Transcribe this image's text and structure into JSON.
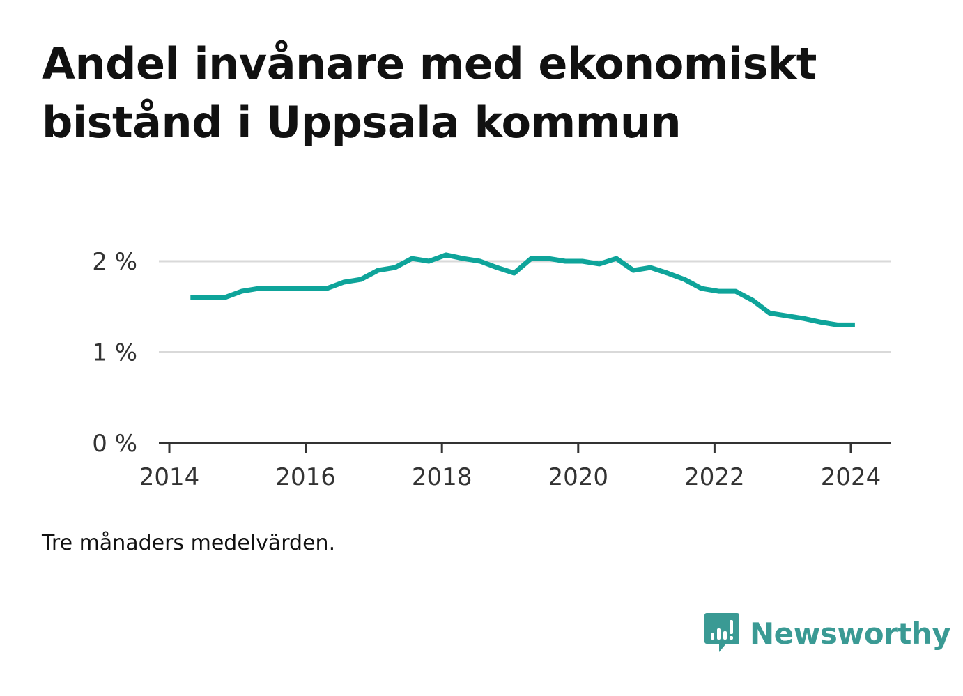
{
  "colors": {
    "line": "#0ea49a",
    "grid": "#d9d9d9",
    "axis": "#333333",
    "brand": "#3a9a94"
  },
  "chart_data": {
    "type": "line",
    "title": "Andel invånare med ekonomiskt bistånd i Uppsala kommun",
    "xlabel": "",
    "ylabel": "",
    "xlim": [
      2014,
      2024.3
    ],
    "ylim": [
      0,
      2.2
    ],
    "grid": true,
    "x_ticks": [
      {
        "value": 2014,
        "label": "2014"
      },
      {
        "value": 2016,
        "label": "2016"
      },
      {
        "value": 2018,
        "label": "2018"
      },
      {
        "value": 2020,
        "label": "2020"
      },
      {
        "value": 2022,
        "label": "2022"
      },
      {
        "value": 2024,
        "label": "2024"
      }
    ],
    "y_ticks": [
      {
        "value": 0,
        "label": "0 %"
      },
      {
        "value": 1,
        "label": "1 %"
      },
      {
        "value": 2,
        "label": "2 %"
      }
    ],
    "series": [
      {
        "x": [
          2014.31,
          2014.56,
          2014.81,
          2015.06,
          2015.31,
          2015.56,
          2015.81,
          2016.06,
          2016.31,
          2016.56,
          2016.81,
          2017.06,
          2017.31,
          2017.56,
          2017.81,
          2018.06,
          2018.31,
          2018.56,
          2018.81,
          2019.06,
          2019.31,
          2019.56,
          2019.81,
          2020.06,
          2020.31,
          2020.56,
          2020.81,
          2021.06,
          2021.31,
          2021.56,
          2021.81,
          2022.06,
          2022.31,
          2022.56,
          2022.81,
          2023.06,
          2023.31,
          2023.56,
          2023.81,
          2024.06
        ],
        "values": [
          1.6,
          1.6,
          1.6,
          1.67,
          1.7,
          1.7,
          1.7,
          1.7,
          1.7,
          1.77,
          1.8,
          1.9,
          1.93,
          2.03,
          2.0,
          2.07,
          2.03,
          2.0,
          1.93,
          1.87,
          2.03,
          2.03,
          2.0,
          2.0,
          1.97,
          2.03,
          1.9,
          1.93,
          1.87,
          1.8,
          1.7,
          1.67,
          1.67,
          1.57,
          1.43,
          1.4,
          1.37,
          1.33,
          1.3,
          1.3
        ]
      }
    ]
  },
  "footer": {
    "note": "Tre månaders medelvärden.",
    "brand": "Newsworthy"
  }
}
